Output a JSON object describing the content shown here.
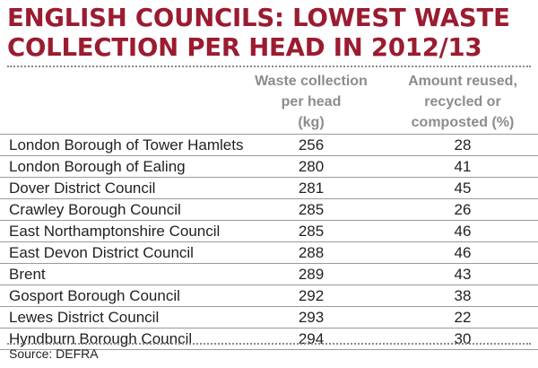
{
  "title_lines": [
    "ENGLISH COUNCILS: LOWEST WASTE",
    "COLLECTION PER HEAD IN 2012/13"
  ],
  "columns": {
    "waste_lines": [
      "Waste collection",
      "per head",
      "(kg)"
    ],
    "recycled_lines": [
      "Amount reused,",
      "recycled or",
      "composted (%)"
    ]
  },
  "source": "Source: DEFRA",
  "colors": {
    "title": "#9b1b30",
    "header": "#8c8c8c",
    "text": "#231f20"
  },
  "chart_data": {
    "type": "table",
    "columns": [
      "",
      "Waste collection per head (kg)",
      "Amount reused, recycled or composted (%)"
    ],
    "rows": [
      [
        "London Borough of Tower Hamlets",
        "256",
        "28"
      ],
      [
        "London Borough of Ealing",
        "280",
        "41"
      ],
      [
        "Dover District Council",
        "281",
        "45"
      ],
      [
        "Crawley Borough Council",
        "285",
        "26"
      ],
      [
        "East Northamptonshire Council",
        "285",
        "46"
      ],
      [
        "East Devon District Council",
        "288",
        "46"
      ],
      [
        "Brent",
        "289",
        "43"
      ],
      [
        "Gosport Borough Council",
        "292",
        "38"
      ],
      [
        "Lewes District Council",
        "293",
        "22"
      ],
      [
        "Hyndburn Borough Council",
        "294",
        "30"
      ]
    ]
  }
}
